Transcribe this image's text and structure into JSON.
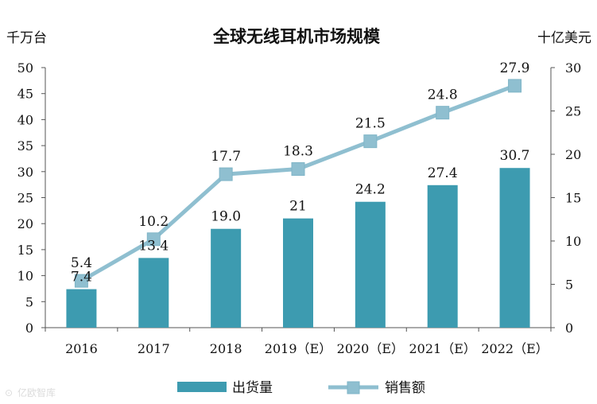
{
  "chart_data": {
    "type": "bar",
    "title": "全球无线耳机市场规模",
    "y_left_label": "千万台",
    "y_right_label": "十亿美元",
    "categories": [
      "2016",
      "2017",
      "2018",
      "2019（E）",
      "2020（E）",
      "2021（E）",
      "2022（E）"
    ],
    "series": [
      {
        "name": "出货量",
        "kind": "bar",
        "axis": "left",
        "values": [
          7.4,
          13.4,
          19.0,
          21,
          24.2,
          27.4,
          30.7
        ],
        "labels": [
          "7.4",
          "13.4",
          "19.0",
          "21",
          "24.2",
          "27.4",
          "30.7"
        ],
        "color": "#3d9bb0"
      },
      {
        "name": "销售额",
        "kind": "line",
        "axis": "right",
        "values": [
          5.4,
          10.2,
          17.7,
          18.3,
          21.5,
          24.8,
          27.9
        ],
        "labels": [
          "5.4",
          "10.2",
          "17.7",
          "18.3",
          "21.5",
          "24.8",
          "27.9"
        ],
        "color": "#8fbfd0"
      }
    ],
    "y_left": {
      "min": 0,
      "max": 50,
      "step": 5,
      "ticks": [
        "0",
        "5",
        "10",
        "15",
        "20",
        "25",
        "30",
        "35",
        "40",
        "45",
        "50"
      ]
    },
    "y_right": {
      "min": 0,
      "max": 30,
      "step": 5,
      "ticks": [
        "0",
        "5",
        "10",
        "15",
        "20",
        "25",
        "30"
      ]
    },
    "legend": {
      "position": "bottom",
      "items": [
        {
          "label": "出货量",
          "marker": "bar"
        },
        {
          "label": "销售额",
          "marker": "line-square"
        }
      ]
    },
    "grid": false
  },
  "watermark": {
    "text": "亿欧智库"
  }
}
